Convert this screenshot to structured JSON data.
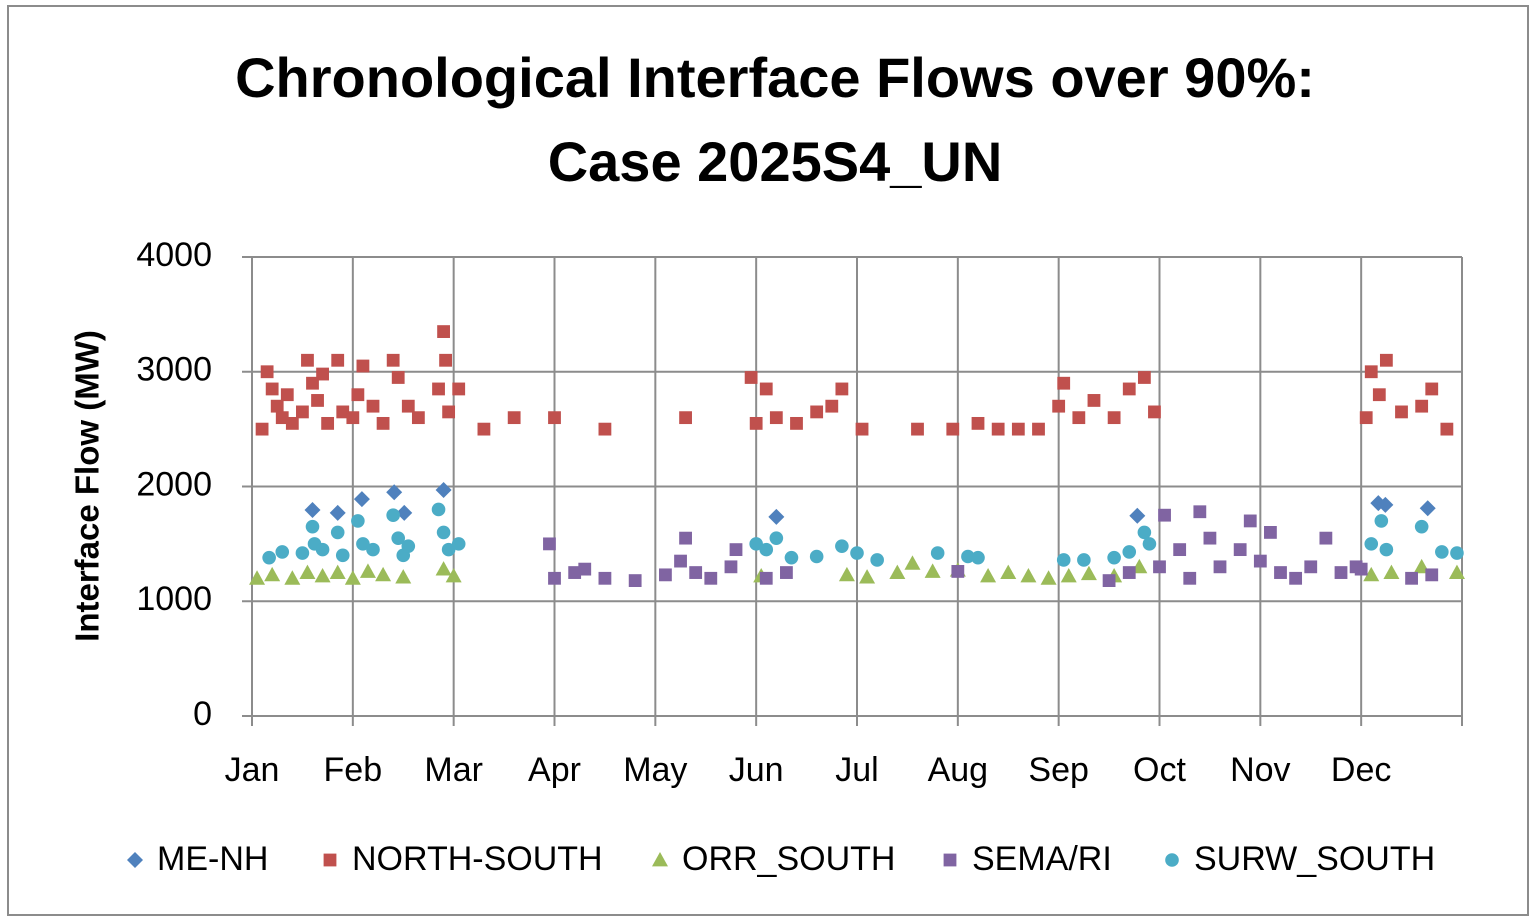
{
  "chart_data": {
    "type": "scatter",
    "title": [
      "Chronological Interface Flows over 90%:",
      "Case 2025S4_UN"
    ],
    "y_label": "Interface Flow (MW)",
    "xlim": [
      0,
      12
    ],
    "xticks": [
      {
        "value": 0,
        "label": "Jan"
      },
      {
        "value": 1,
        "label": "Feb"
      },
      {
        "value": 2,
        "label": "Mar"
      },
      {
        "value": 3,
        "label": "Apr"
      },
      {
        "value": 4,
        "label": "May"
      },
      {
        "value": 5,
        "label": "Jun"
      },
      {
        "value": 6,
        "label": "Jul"
      },
      {
        "value": 7,
        "label": "Aug"
      },
      {
        "value": 8,
        "label": "Sep"
      },
      {
        "value": 9,
        "label": "Oct"
      },
      {
        "value": 10,
        "label": "Nov"
      },
      {
        "value": 11,
        "label": "Dec"
      }
    ],
    "ylim": [
      0,
      4000
    ],
    "yticks": [
      0,
      1000,
      2000,
      3000,
      4000
    ],
    "grid": true,
    "legend": "bottom",
    "series": [
      {
        "name": "ME-NH",
        "color": "#4f81bd",
        "marker": "diamond",
        "x": [
          0.6,
          0.85,
          1.09,
          1.41,
          1.51,
          1.9,
          5.2,
          8.78,
          11.17,
          11.24,
          11.66
        ],
        "values": [
          1795,
          1770,
          1890,
          1950,
          1770,
          1970,
          1735,
          1745,
          1855,
          1840,
          1810
        ]
      },
      {
        "name": "NORTH-SOUTH",
        "color": "#c0504d",
        "marker": "square",
        "x": [
          0.1,
          0.15,
          0.2,
          0.25,
          0.3,
          0.35,
          0.4,
          0.5,
          0.55,
          0.6,
          0.65,
          0.7,
          0.75,
          0.85,
          0.9,
          1.0,
          1.05,
          1.1,
          1.2,
          1.3,
          1.4,
          1.45,
          1.55,
          1.65,
          1.85,
          1.9,
          1.92,
          1.95,
          2.05,
          2.3,
          2.6,
          3.0,
          3.5,
          4.3,
          4.95,
          5.0,
          5.1,
          5.2,
          5.4,
          5.6,
          5.75,
          5.85,
          6.05,
          6.6,
          6.95,
          7.2,
          7.4,
          7.6,
          7.8,
          8.0,
          8.05,
          8.2,
          8.35,
          8.55,
          8.7,
          8.85,
          8.95,
          11.05,
          11.1,
          11.18,
          11.25,
          11.4,
          11.6,
          11.7,
          11.85
        ],
        "values": [
          2500,
          3000,
          2850,
          2700,
          2600,
          2800,
          2550,
          2650,
          3100,
          2900,
          2750,
          2980,
          2550,
          3100,
          2650,
          2600,
          2800,
          3050,
          2700,
          2550,
          3100,
          2950,
          2700,
          2600,
          2850,
          3350,
          3100,
          2650,
          2850,
          2500,
          2600,
          2600,
          2500,
          2600,
          2950,
          2550,
          2850,
          2600,
          2550,
          2650,
          2700,
          2850,
          2500,
          2500,
          2500,
          2550,
          2500,
          2500,
          2500,
          2700,
          2900,
          2600,
          2750,
          2600,
          2850,
          2950,
          2650,
          2600,
          3000,
          2800,
          3100,
          2650,
          2700,
          2850,
          2500
        ]
      },
      {
        "name": "ORR_SOUTH",
        "color": "#9bbb59",
        "marker": "triangle",
        "x": [
          0.05,
          0.2,
          0.4,
          0.55,
          0.7,
          0.85,
          1.0,
          1.15,
          1.3,
          1.5,
          1.9,
          2.0,
          5.05,
          5.9,
          6.1,
          6.4,
          6.55,
          6.75,
          7.0,
          7.3,
          7.5,
          7.7,
          7.9,
          8.1,
          8.3,
          8.55,
          8.8,
          11.1,
          11.3,
          11.6,
          11.95
        ],
        "values": [
          1200,
          1230,
          1200,
          1250,
          1220,
          1250,
          1200,
          1260,
          1230,
          1210,
          1280,
          1220,
          1220,
          1230,
          1210,
          1250,
          1330,
          1260,
          1270,
          1220,
          1250,
          1220,
          1200,
          1220,
          1240,
          1220,
          1300,
          1230,
          1250,
          1300,
          1250
        ]
      },
      {
        "name": "SEMA/RI",
        "color": "#8064a2",
        "marker": "square",
        "x": [
          2.95,
          3.0,
          3.2,
          3.3,
          3.5,
          3.8,
          4.1,
          4.25,
          4.3,
          4.4,
          4.55,
          4.75,
          4.8,
          5.1,
          5.3,
          7.0,
          8.5,
          8.7,
          9.0,
          9.05,
          9.2,
          9.3,
          9.4,
          9.5,
          9.6,
          9.8,
          9.9,
          10.0,
          10.1,
          10.2,
          10.35,
          10.5,
          10.65,
          10.8,
          10.95,
          11.0,
          11.5,
          11.7
        ],
        "values": [
          1500,
          1200,
          1250,
          1280,
          1200,
          1180,
          1230,
          1350,
          1550,
          1250,
          1200,
          1300,
          1450,
          1200,
          1250,
          1260,
          1180,
          1250,
          1300,
          1750,
          1450,
          1200,
          1780,
          1550,
          1300,
          1450,
          1700,
          1350,
          1600,
          1250,
          1200,
          1300,
          1550,
          1250,
          1300,
          1280,
          1200,
          1230
        ]
      },
      {
        "name": "SURW_SOUTH",
        "color": "#4bacc6",
        "marker": "circle",
        "x": [
          0.17,
          0.3,
          0.5,
          0.6,
          0.62,
          0.7,
          0.85,
          0.9,
          1.05,
          1.1,
          1.2,
          1.4,
          1.45,
          1.5,
          1.55,
          1.85,
          1.9,
          1.95,
          2.05,
          5.0,
          5.1,
          5.2,
          5.35,
          5.6,
          5.85,
          6.0,
          6.2,
          6.8,
          7.1,
          7.2,
          8.05,
          8.25,
          8.55,
          8.7,
          8.85,
          8.9,
          11.1,
          11.2,
          11.25,
          11.6,
          11.8,
          11.95
        ],
        "values": [
          1380,
          1430,
          1420,
          1650,
          1500,
          1450,
          1600,
          1400,
          1700,
          1500,
          1450,
          1750,
          1550,
          1400,
          1480,
          1800,
          1600,
          1450,
          1500,
          1500,
          1450,
          1550,
          1380,
          1390,
          1480,
          1420,
          1360,
          1420,
          1390,
          1380,
          1360,
          1360,
          1380,
          1430,
          1600,
          1500,
          1500,
          1700,
          1450,
          1650,
          1430,
          1420
        ]
      }
    ]
  }
}
